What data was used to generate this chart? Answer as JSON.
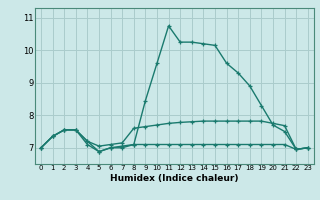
{
  "xlabel": "Humidex (Indice chaleur)",
  "background_color": "#cce8e8",
  "grid_color": "#aacccc",
  "line_color": "#1a7a6e",
  "xlim": [
    -0.5,
    23.5
  ],
  "ylim": [
    6.5,
    11.3
  ],
  "yticks": [
    7,
    8,
    9,
    10,
    11
  ],
  "xticks": [
    0,
    1,
    2,
    3,
    4,
    5,
    6,
    7,
    8,
    9,
    10,
    11,
    12,
    13,
    14,
    15,
    16,
    17,
    18,
    19,
    20,
    21,
    22,
    23
  ],
  "line1_x": [
    0,
    1,
    2,
    3,
    4,
    5,
    6,
    7,
    8,
    9,
    10,
    11,
    12,
    13,
    14,
    15,
    16,
    17,
    18,
    19,
    20,
    21,
    22,
    23
  ],
  "line1_y": [
    7.0,
    7.35,
    7.55,
    7.55,
    7.2,
    6.88,
    7.0,
    7.0,
    7.1,
    8.45,
    9.6,
    10.75,
    10.25,
    10.25,
    10.2,
    10.15,
    9.6,
    9.3,
    8.9,
    8.3,
    7.7,
    7.5,
    6.95,
    7.0
  ],
  "line2_x": [
    0,
    1,
    2,
    3,
    4,
    5,
    6,
    7,
    8,
    9,
    10,
    11,
    12,
    13,
    14,
    15,
    16,
    17,
    18,
    19,
    20,
    21,
    22,
    23
  ],
  "line2_y": [
    7.0,
    7.35,
    7.55,
    7.55,
    7.2,
    7.05,
    7.1,
    7.15,
    7.6,
    7.65,
    7.7,
    7.75,
    7.78,
    7.8,
    7.82,
    7.82,
    7.82,
    7.82,
    7.82,
    7.82,
    7.75,
    7.68,
    6.95,
    7.0
  ],
  "line3_x": [
    0,
    1,
    2,
    3,
    4,
    5,
    6,
    7,
    8,
    9,
    10,
    11,
    12,
    13,
    14,
    15,
    16,
    17,
    18,
    19,
    20,
    21,
    22,
    23
  ],
  "line3_y": [
    7.0,
    7.35,
    7.55,
    7.55,
    7.1,
    6.88,
    7.0,
    7.05,
    7.1,
    7.1,
    7.1,
    7.1,
    7.1,
    7.1,
    7.1,
    7.1,
    7.1,
    7.1,
    7.1,
    7.1,
    7.1,
    7.1,
    6.95,
    7.0
  ]
}
